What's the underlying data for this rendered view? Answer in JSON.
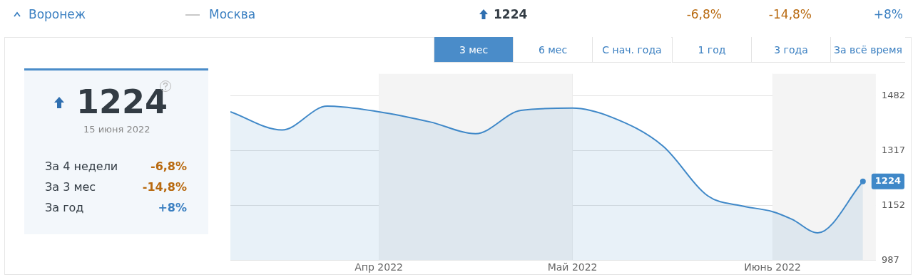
{
  "chart_data": {
    "type": "area",
    "x": [
      "2022-03-09",
      "2022-03-17",
      "2022-03-24",
      "2022-04-01",
      "2022-04-09",
      "2022-04-16",
      "2022-04-23",
      "2022-05-01",
      "2022-05-07",
      "2022-05-15",
      "2022-05-22",
      "2022-05-27",
      "2022-06-01",
      "2022-06-04",
      "2022-06-08",
      "2022-06-15"
    ],
    "series": [
      {
        "color": "#3f88c8",
        "values": [
          1434,
          1379,
          1451,
          1434,
          1403,
          1368,
          1438,
          1445,
          1418,
          1331,
          1180,
          1151,
          1133,
          1110,
          1069,
          1224
        ],
        "value_labels": [
          null,
          null,
          null,
          null,
          null,
          null,
          null,
          null,
          null,
          null,
          null,
          null,
          null,
          null,
          null,
          "1224"
        ]
      }
    ],
    "xlim": [
      "2022-03-09",
      "2022-06-17"
    ],
    "xticks": [
      {
        "value": "2022-04-01",
        "label": "Апр 2022"
      },
      {
        "value": "2022-05-01",
        "label": "Май 2022"
      },
      {
        "value": "2022-06-01",
        "label": "Июнь 2022"
      }
    ],
    "ylim": [
      987,
      1548
    ],
    "yticks": [
      987,
      1152,
      1317,
      1482
    ],
    "grid": true,
    "marker": "none",
    "bands": [
      {
        "axis": "x",
        "from": "2022-04-01",
        "to": "2022-05-01",
        "color": "#f4f4f4"
      },
      {
        "axis": "x",
        "from": "2022-06-01",
        "to": "2022-06-17",
        "color": "#f4f4f4"
      }
    ],
    "annotations": [
      "Воронеж",
      "Москва",
      "1224",
      "-6,8%",
      "-14,8%",
      "+8%",
      "3 мес",
      "6 мес",
      "С нач. года",
      "1 год",
      "3 года",
      "За всё время",
      "1224",
      "15 июня 2022",
      "За 4 недели",
      "-6,8%",
      "За 3 мес",
      "-14,8%",
      "За год",
      "+8%"
    ]
  }
}
